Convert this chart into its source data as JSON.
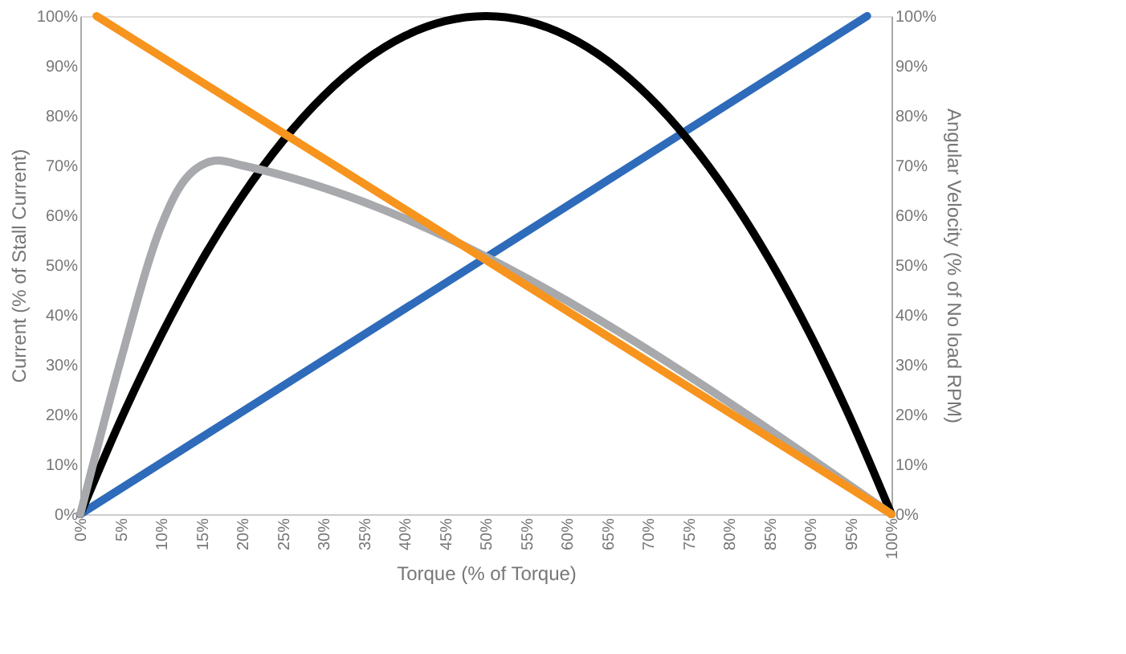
{
  "chart_data": {
    "type": "line",
    "xlabel": "Torque (% of Torque)",
    "ylabel": "Current (% of Stall Current)",
    "y2label": "Angular Velocity (% of No load RPM)",
    "xlim": [
      0,
      100
    ],
    "ylim": [
      0,
      100
    ],
    "y2lim": [
      0,
      100
    ],
    "xticks": [
      {
        "value": 0,
        "label": "0%"
      },
      {
        "value": 5,
        "label": "5%"
      },
      {
        "value": 10,
        "label": "10%"
      },
      {
        "value": 15,
        "label": "15%"
      },
      {
        "value": 20,
        "label": "20%"
      },
      {
        "value": 25,
        "label": "25%"
      },
      {
        "value": 30,
        "label": "30%"
      },
      {
        "value": 35,
        "label": "35%"
      },
      {
        "value": 40,
        "label": "40%"
      },
      {
        "value": 45,
        "label": "45%"
      },
      {
        "value": 50,
        "label": "50%"
      },
      {
        "value": 55,
        "label": "55%"
      },
      {
        "value": 60,
        "label": "60%"
      },
      {
        "value": 65,
        "label": "65%"
      },
      {
        "value": 70,
        "label": "70%"
      },
      {
        "value": 75,
        "label": "75%"
      },
      {
        "value": 80,
        "label": "80%"
      },
      {
        "value": 85,
        "label": "85%"
      },
      {
        "value": 90,
        "label": "90%"
      },
      {
        "value": 95,
        "label": "95%"
      },
      {
        "value": 100,
        "label": "100%"
      }
    ],
    "yticks": [
      {
        "value": 0,
        "label": "0%"
      },
      {
        "value": 10,
        "label": "10%"
      },
      {
        "value": 20,
        "label": "20%"
      },
      {
        "value": 30,
        "label": "30%"
      },
      {
        "value": 40,
        "label": "40%"
      },
      {
        "value": 50,
        "label": "50%"
      },
      {
        "value": 60,
        "label": "60%"
      },
      {
        "value": 70,
        "label": "70%"
      },
      {
        "value": 80,
        "label": "80%"
      },
      {
        "value": 90,
        "label": "90%"
      },
      {
        "value": 100,
        "label": "100%"
      }
    ],
    "y2ticks": [
      {
        "value": 0,
        "label": "0%"
      },
      {
        "value": 10,
        "label": "10%"
      },
      {
        "value": 20,
        "label": "20%"
      },
      {
        "value": 30,
        "label": "30%"
      },
      {
        "value": 40,
        "label": "40%"
      },
      {
        "value": 50,
        "label": "50%"
      },
      {
        "value": 60,
        "label": "60%"
      },
      {
        "value": 70,
        "label": "70%"
      },
      {
        "value": 80,
        "label": "80%"
      },
      {
        "value": 90,
        "label": "90%"
      },
      {
        "value": 100,
        "label": "100%"
      }
    ],
    "grid": false,
    "marker": "none",
    "line_style": "solid",
    "series": [
      {
        "color": "#2e6bba",
        "x": [
          0,
          97
        ],
        "values": [
          0,
          100
        ]
      },
      {
        "color": "#f7941d",
        "axis": "y2",
        "x": [
          2,
          100
        ],
        "values": [
          100,
          0
        ]
      },
      {
        "color": "#000000",
        "x": [
          0,
          5,
          10,
          15,
          20,
          25,
          30,
          35,
          40,
          45,
          50,
          55,
          60,
          65,
          70,
          75,
          80,
          85,
          90,
          95,
          100
        ],
        "values": [
          0,
          19,
          36,
          51,
          64,
          75,
          84,
          91,
          96,
          99,
          100,
          99,
          96,
          91,
          84,
          75,
          64,
          51,
          36,
          19,
          0
        ]
      },
      {
        "color": "#a7a9ac",
        "x": [
          0,
          5,
          10,
          12,
          14,
          17,
          20,
          100
        ],
        "values": [
          0,
          31,
          58,
          65,
          69,
          71,
          70,
          0
        ]
      }
    ]
  }
}
